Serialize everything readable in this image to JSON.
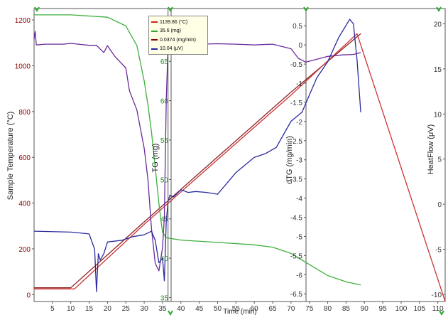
{
  "chart_data": {
    "type": "line",
    "xlabel": "Time (min)",
    "x_ticks": [
      "5",
      "10",
      "15",
      "20",
      "25",
      "30",
      "35",
      "40",
      "45",
      "50",
      "55",
      "60",
      "65",
      "70",
      "75",
      "80",
      "85",
      "90",
      "95",
      "100",
      "105",
      "110"
    ],
    "xlim": [
      0,
      112
    ],
    "axes": [
      {
        "id": "temp",
        "label": "Sample Temperature (°C)",
        "ticks": [
          "0",
          "200",
          "400",
          "600",
          "800",
          "1000",
          "1200"
        ],
        "ylim": [
          -30,
          1250
        ],
        "color": "#8b0000"
      },
      {
        "id": "tg",
        "label": "TG (mg)",
        "ticks": [
          "35",
          "40",
          "45",
          "50",
          "55",
          "60",
          "65",
          "70"
        ],
        "ylim": [
          34.5,
          71.7
        ],
        "color": "#2e8b2e"
      },
      {
        "id": "dtg",
        "label": "dTG (mg/min)",
        "ticks": [
          "0.5",
          "0",
          "-0.5",
          "-1",
          "-1.5",
          "-2",
          "-2.5",
          "-3",
          "-3.5",
          "-4",
          "-4.5",
          "-5",
          "-5.5",
          "-6",
          "-6.5"
        ],
        "ylim": [
          -6.7,
          0.95
        ],
        "color": "#333333"
      },
      {
        "id": "hf",
        "label": "HeatFlow (μV)",
        "ticks": [
          "20",
          "15",
          "10",
          "5",
          "0",
          "-5",
          "-10"
        ],
        "ylim": [
          -10.8,
          21.7
        ],
        "color": "#333333"
      }
    ],
    "legend": [
      {
        "text": "1139.86 (°C)",
        "color": "#cc2222"
      },
      {
        "text": "35.6 (mg)",
        "color": "#2eaa2e"
      },
      {
        "text": "0.0374 (mg/min)",
        "color": "#8b0000"
      },
      {
        "text": "10.04 (μV)",
        "color": "#2222aa"
      }
    ],
    "cursor_x": 36.5,
    "series": [
      {
        "axis": "temp",
        "color": "#8b2323",
        "points": [
          [
            0,
            30
          ],
          [
            10,
            30
          ],
          [
            30,
            318
          ],
          [
            50,
            602
          ],
          [
            70,
            885
          ],
          [
            89,
            1140
          ]
        ]
      },
      {
        "axis": "temp",
        "color": "#cc3333",
        "points": [
          [
            0,
            25
          ],
          [
            11,
            25
          ],
          [
            30,
            307
          ],
          [
            50,
            590
          ],
          [
            70,
            872
          ],
          [
            88,
            1140
          ],
          [
            112,
            -30
          ]
        ]
      },
      {
        "axis": "tg",
        "color": "#3cb03c",
        "points": [
          [
            0,
            70.9
          ],
          [
            10,
            70.9
          ],
          [
            20,
            70.6
          ],
          [
            25,
            69.5
          ],
          [
            28,
            67.0
          ],
          [
            30,
            62.5
          ],
          [
            31,
            59.5
          ],
          [
            32,
            56.0
          ],
          [
            33,
            51.5
          ],
          [
            34,
            47.0
          ],
          [
            34.5,
            45.0
          ],
          [
            35,
            43.3
          ],
          [
            36,
            42.6
          ],
          [
            40,
            42.3
          ],
          [
            50,
            42.0
          ],
          [
            60,
            41.7
          ],
          [
            65,
            41.4
          ],
          [
            70,
            40.6
          ],
          [
            75,
            39.2
          ],
          [
            80,
            37.8
          ],
          [
            85,
            37.0
          ],
          [
            89,
            36.6
          ]
        ]
      },
      {
        "axis": "dtg",
        "color": "#6a2a9a",
        "points": [
          [
            0,
            0.15
          ],
          [
            0.3,
            0.35
          ],
          [
            0.6,
            0.0
          ],
          [
            3,
            0.02
          ],
          [
            8,
            0.02
          ],
          [
            10,
            0.04
          ],
          [
            12,
            0.02
          ],
          [
            15,
            -0.01
          ],
          [
            17,
            -0.01
          ],
          [
            19,
            -0.2
          ],
          [
            20,
            -0.02
          ],
          [
            22,
            -0.3
          ],
          [
            25,
            -0.6
          ],
          [
            26,
            -1.2
          ],
          [
            28,
            -1.7
          ],
          [
            30,
            -2.7
          ],
          [
            31,
            -3.5
          ],
          [
            32,
            -4.8
          ],
          [
            33,
            -5.7
          ],
          [
            34,
            -5.9
          ],
          [
            35,
            -5.3
          ],
          [
            35.5,
            -4.5
          ],
          [
            36,
            -1.5
          ],
          [
            36.5,
            0.0
          ],
          [
            38,
            0.02
          ],
          [
            45,
            0.02
          ],
          [
            50,
            0.03
          ],
          [
            55,
            0.02
          ],
          [
            60,
            0.0
          ],
          [
            65,
            0.02
          ],
          [
            70,
            -0.1
          ],
          [
            72,
            -0.35
          ],
          [
            74,
            -0.45
          ],
          [
            76,
            -0.4
          ],
          [
            80,
            -0.3
          ],
          [
            84,
            -0.26
          ],
          [
            87,
            -0.25
          ],
          [
            89,
            -0.2
          ]
        ]
      },
      {
        "axis": "hf",
        "color": "#2a2aa0",
        "points": [
          [
            0,
            -3.0
          ],
          [
            10,
            -3.1
          ],
          [
            15,
            -3.3
          ],
          [
            16.5,
            -5.0
          ],
          [
            17,
            -9.7
          ],
          [
            17.5,
            -5.5
          ],
          [
            18,
            -6.2
          ],
          [
            19,
            -5.5
          ],
          [
            20,
            -4.2
          ],
          [
            24,
            -4.0
          ],
          [
            27,
            -3.6
          ],
          [
            30,
            -3.4
          ],
          [
            32,
            -3.0
          ],
          [
            33,
            -4.0
          ],
          [
            34,
            -6.5
          ],
          [
            35,
            -6.0
          ],
          [
            35.5,
            -8.5
          ],
          [
            36,
            -2.0
          ],
          [
            36.5,
            0.3
          ],
          [
            37,
            1.0
          ],
          [
            38,
            0.8
          ],
          [
            40,
            1.6
          ],
          [
            42,
            1.3
          ],
          [
            44,
            1.4
          ],
          [
            47,
            1.3
          ],
          [
            50,
            1.1
          ],
          [
            55,
            3.5
          ],
          [
            60,
            5.2
          ],
          [
            63,
            5.6
          ],
          [
            66,
            6.3
          ],
          [
            70,
            9.2
          ],
          [
            73,
            10.2
          ],
          [
            77,
            14.0
          ],
          [
            80,
            15.8
          ],
          [
            83,
            18.5
          ],
          [
            86,
            20.5
          ],
          [
            87,
            20.0
          ],
          [
            88,
            16.0
          ],
          [
            89,
            10.2
          ]
        ]
      }
    ]
  }
}
